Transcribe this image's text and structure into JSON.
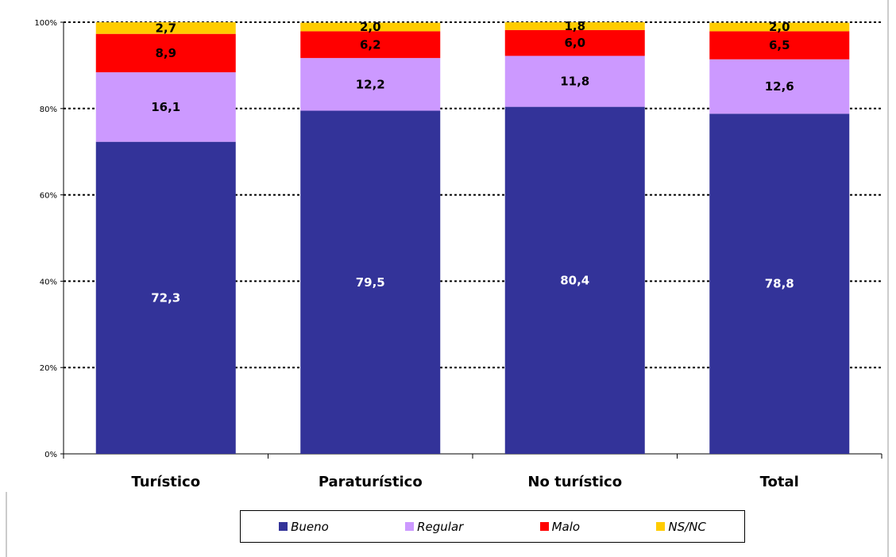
{
  "chart_data": {
    "type": "bar",
    "stacked": true,
    "percent": true,
    "title": "",
    "xlabel": "",
    "ylabel": "",
    "ylim": [
      0,
      100
    ],
    "yticks": [
      "0%",
      "20%",
      "40%",
      "60%",
      "80%",
      "100%"
    ],
    "grid": "horizontal dotted",
    "legend_position": "bottom",
    "categories": [
      "Turístico",
      "Paraturístico",
      "No turístico",
      "Total"
    ],
    "series": [
      {
        "name": "Bueno",
        "color": "#333399",
        "label_color": "#ffffff",
        "values": [
          72.3,
          79.5,
          80.4,
          78.8
        ],
        "labels": [
          "72,3",
          "79,5",
          "80,4",
          "78,8"
        ]
      },
      {
        "name": "Regular",
        "color": "#cc99ff",
        "label_color": "#000000",
        "values": [
          16.1,
          12.2,
          11.8,
          12.6
        ],
        "labels": [
          "16,1",
          "12,2",
          "11,8",
          "12,6"
        ]
      },
      {
        "name": "Malo",
        "color": "#ff0000",
        "label_color": "#000000",
        "values": [
          8.9,
          6.2,
          6.0,
          6.5
        ],
        "labels": [
          "8,9",
          "6,2",
          "6,0",
          "6,5"
        ]
      },
      {
        "name": "NS/NC",
        "color": "#ffcc00",
        "label_color": "#000000",
        "values": [
          2.7,
          2.0,
          1.8,
          2.0
        ],
        "labels": [
          "2,7",
          "2,0",
          "1,8",
          "2,0"
        ]
      }
    ]
  }
}
